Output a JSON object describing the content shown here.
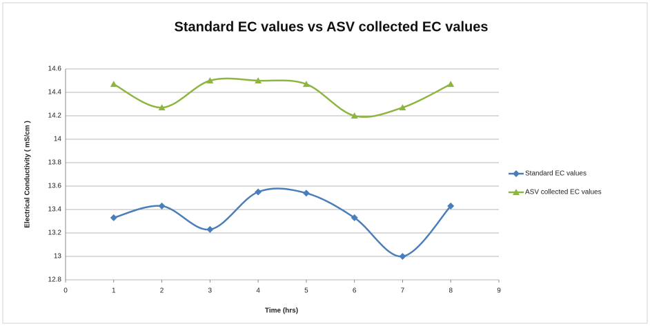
{
  "chart_data": {
    "type": "line",
    "title": "Standard EC values vs ASV collected EC values",
    "x_label": "Time (hrs)",
    "y_label": "Electrical Conductivity ( mS/cm )",
    "x": [
      1,
      2,
      3,
      4,
      5,
      6,
      7,
      8
    ],
    "series": [
      {
        "name": "Standard EC values",
        "color": "#4a7ebb",
        "marker": "diamond",
        "values": [
          13.33,
          13.43,
          13.23,
          13.55,
          13.54,
          13.33,
          13.0,
          13.43
        ]
      },
      {
        "name": "ASV collected EC values",
        "color": "#8db53f",
        "marker": "triangle",
        "values": [
          14.47,
          14.27,
          14.5,
          14.5,
          14.47,
          14.2,
          14.27,
          14.47
        ]
      }
    ],
    "xlim": [
      0,
      9
    ],
    "xticks": [
      0,
      1,
      2,
      3,
      4,
      5,
      6,
      7,
      8,
      9
    ],
    "ylim": [
      12.8,
      14.6
    ],
    "yticks": [
      12.8,
      13,
      13.2,
      13.4,
      13.6,
      13.8,
      14,
      14.2,
      14.4,
      14.6
    ],
    "grid": true,
    "smooth": true,
    "legend": "right"
  }
}
